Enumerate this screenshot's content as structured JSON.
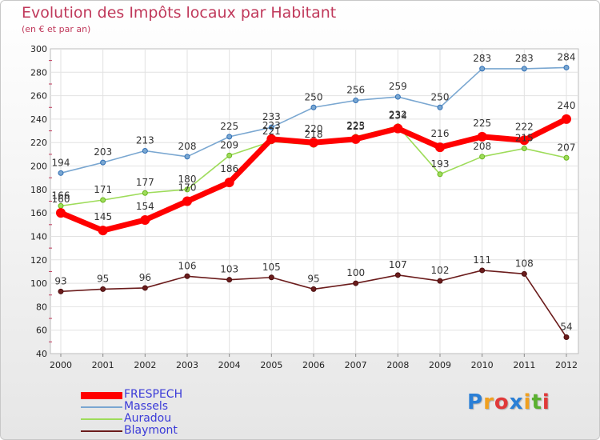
{
  "chart_data": {
    "type": "line",
    "title": "Evolution des Impôts locaux par Habitant",
    "subtitle": "(en € et par an)",
    "xlabel": "",
    "ylabel": "",
    "categories": [
      "2000",
      "2001",
      "2002",
      "2003",
      "2004",
      "2005",
      "2006",
      "2007",
      "2008",
      "2009",
      "2010",
      "2011",
      "2012"
    ],
    "ylim": [
      40,
      300
    ],
    "yticks": [
      40,
      60,
      80,
      100,
      120,
      140,
      160,
      180,
      200,
      220,
      240,
      260,
      280,
      300
    ],
    "grid": true,
    "legend_position": "bottom-left",
    "series": [
      {
        "name": "FRESPECH",
        "color": "#ff0000",
        "values": [
          160,
          145,
          154,
          170,
          186,
          223,
          220,
          223,
          232,
          216,
          225,
          222,
          240
        ]
      },
      {
        "name": "Massels",
        "color": "#7aa7d1",
        "values": [
          194,
          203,
          213,
          208,
          225,
          233,
          250,
          256,
          259,
          250,
          283,
          283,
          284
        ]
      },
      {
        "name": "Auradou",
        "color": "#9edc5a",
        "values": [
          166,
          171,
          177,
          180,
          209,
          221,
          218,
          225,
          234,
          193,
          208,
          215,
          207
        ]
      },
      {
        "name": "Blaymont",
        "color": "#6b1c1c",
        "values": [
          93,
          95,
          96,
          106,
          103,
          105,
          95,
          100,
          107,
          102,
          111,
          108,
          54
        ]
      }
    ]
  },
  "logo": {
    "letters": [
      "P",
      "r",
      "o",
      "x",
      "i",
      "t",
      "i"
    ],
    "colors": [
      "#2a7fd6",
      "#f0a020",
      "#e03a3a",
      "#2a7fd6",
      "#f0a020",
      "#5ab030",
      "#e03a3a"
    ]
  }
}
